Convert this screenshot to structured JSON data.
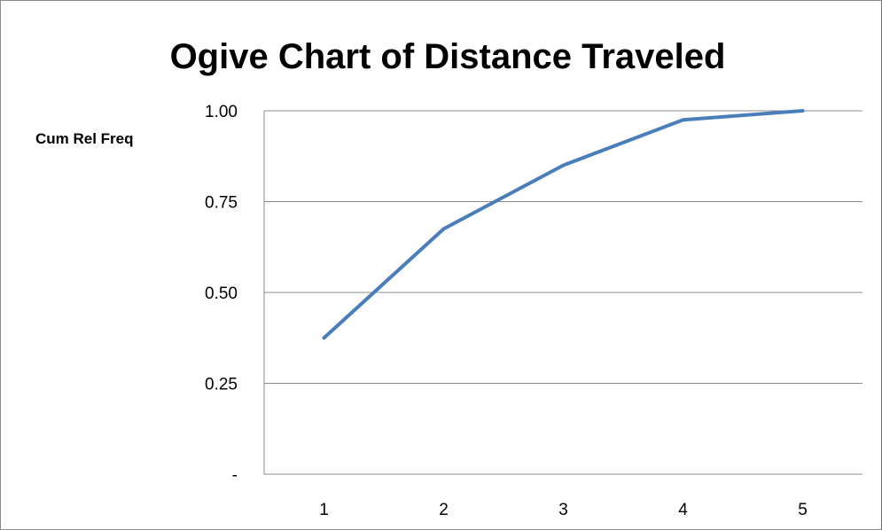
{
  "chart_data": {
    "type": "line",
    "title": "Ogive Chart of Distance Traveled",
    "ylabel": "Cum Rel Freq",
    "xlabel": "",
    "categories": [
      "1",
      "2",
      "3",
      "4",
      "5"
    ],
    "series": [
      {
        "values": [
          0.375,
          0.675,
          0.85,
          0.975,
          1.0
        ],
        "color": "#4a7ebb"
      }
    ],
    "ylim": [
      0,
      1
    ],
    "y_ticks": [
      0,
      0.25,
      0.5,
      0.75,
      1.0
    ],
    "y_tick_labels": [
      "-",
      "0.25",
      "0.50",
      "0.75",
      "1.00"
    ],
    "grid": true,
    "legend": "none",
    "colors": {
      "line": "#4a7ebb",
      "grid": "#8c8c8c",
      "axis": "#8c8c8c"
    }
  }
}
